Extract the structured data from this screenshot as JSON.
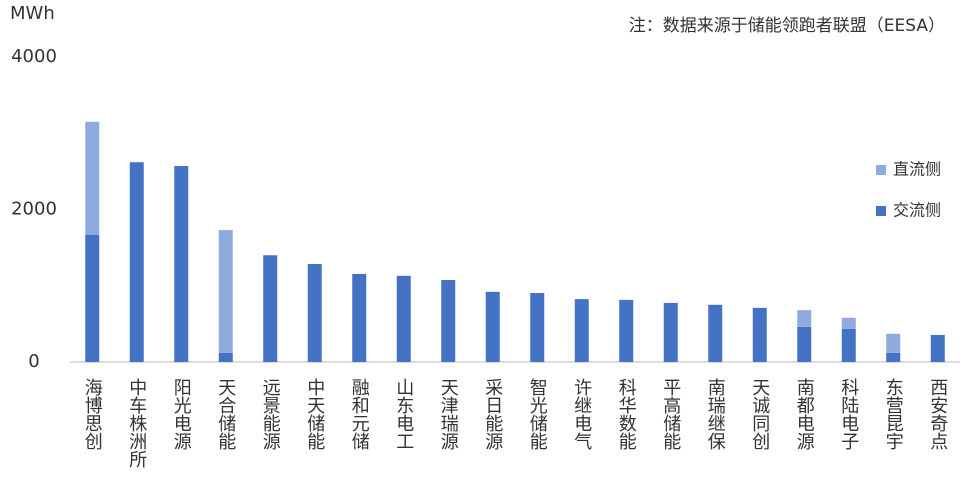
{
  "chart_data": {
    "type": "stacked_bar",
    "note": "注：数据来源于储能领跑者联盟（EESA）",
    "y_unit": "MWh",
    "categories": [
      "海博思创",
      "中车株洲所",
      "阳光电源",
      "天合储能",
      "远景能源",
      "中天储能",
      "融和元储",
      "山东电工",
      "天津瑞源",
      "采日能源",
      "智光储能",
      "许继电气",
      "科华数能",
      "平高储能",
      "南瑞继保",
      "天诚同创",
      "南都电源",
      "科陆电子",
      "东营昆宇",
      "西安奇点"
    ],
    "series": [
      {
        "name": "交流侧",
        "color": "#4472c4",
        "values": [
          1670,
          2620,
          2570,
          120,
          1400,
          1285,
          1155,
          1130,
          1075,
          920,
          905,
          825,
          815,
          775,
          750,
          710,
          460,
          435,
          120,
          355
        ]
      },
      {
        "name": "直流侧",
        "color": "#8faadc",
        "values": [
          1480,
          null,
          null,
          1610,
          null,
          null,
          null,
          null,
          null,
          null,
          null,
          null,
          null,
          null,
          null,
          null,
          220,
          145,
          250,
          null
        ]
      }
    ],
    "ylim": [
      0,
      4000
    ],
    "yticks": [
      0,
      2000,
      4000
    ],
    "grid": false,
    "legend": "right"
  }
}
